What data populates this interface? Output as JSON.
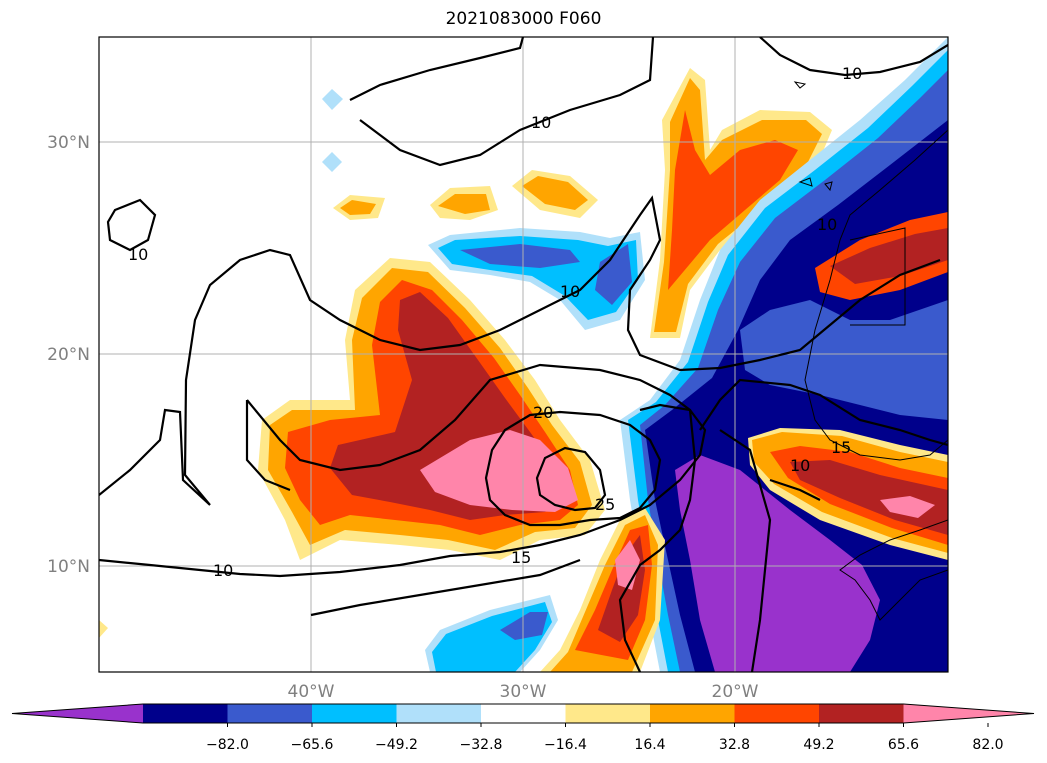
{
  "title": "2021083000 F060",
  "lat_labels": [
    "30°N",
    "20°N",
    "10°N"
  ],
  "lon_labels": [
    "40°W",
    "30°W",
    "20°W"
  ],
  "colorbar": {
    "ticks": [
      "−82.0",
      "−65.6",
      "−49.2",
      "−32.8",
      "−16.4",
      "16.4",
      "32.8",
      "49.2",
      "65.6",
      "82.0"
    ],
    "colors": [
      "#9932cc",
      "#00008b",
      "#3a5acd",
      "#00bfff",
      "#b0e0fa",
      "#ffffff",
      "#ffe88a",
      "#ffa500",
      "#ff4500",
      "#b22222",
      "#ff85aa"
    ]
  },
  "contour_labels": [
    "10",
    "10",
    "10",
    "10",
    "10",
    "10",
    "20",
    "25",
    "15",
    "15",
    "10"
  ]
}
